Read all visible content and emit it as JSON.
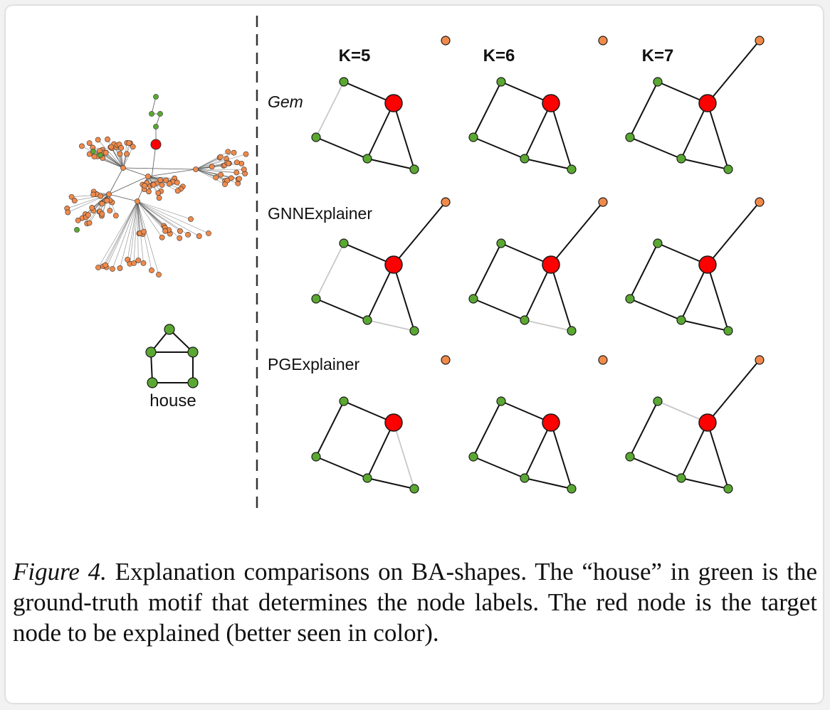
{
  "figure": {
    "column_headers": [
      "K=5",
      "K=6",
      "K=7"
    ],
    "row_labels": [
      "Gem",
      "GNNExplainer",
      "PGExplainer"
    ],
    "motif_label": "house",
    "colors": {
      "target": "#ff0000",
      "motif": "#5aa832",
      "base": "#f08a4b",
      "edge": "#111111",
      "edge_missing": "#c8c8c8",
      "divider": "#333333"
    }
  },
  "caption": {
    "label": "Figure 4.",
    "text": " Explanation comparisons on BA-shapes. The “house” in green is the ground-truth motif that determines the node labels. The red node is the target node to be explained (better seen in color)."
  }
}
